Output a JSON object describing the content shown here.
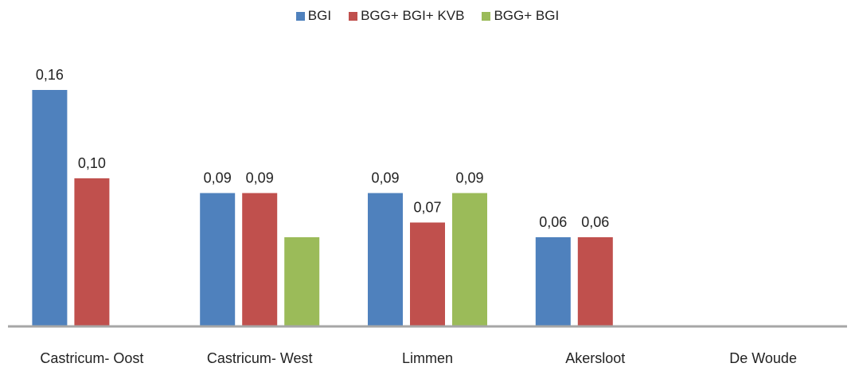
{
  "chart_data": {
    "type": "bar",
    "title": "",
    "xlabel": "",
    "ylabel": "",
    "categories": [
      "Castricum- Oost",
      "Castricum- West",
      "Limmen",
      "Akersloot",
      "De Woude"
    ],
    "series": [
      {
        "name": "BGI",
        "color": "#4F81BD",
        "values": [
          0.16,
          0.09,
          0.09,
          0.06,
          null
        ],
        "labels": [
          "0,16",
          "0,09",
          "0,09",
          "0,06",
          ""
        ]
      },
      {
        "name": "BGG+ BGI+ KVB",
        "color": "#C0504D",
        "values": [
          0.1,
          0.09,
          0.07,
          0.06,
          null
        ],
        "labels": [
          "0,10",
          "0,09",
          "0,07",
          "0,06",
          ""
        ]
      },
      {
        "name": "BGG+ BGI",
        "color": "#9BBB59",
        "values": [
          null,
          0.06,
          0.09,
          null,
          null
        ],
        "labels": [
          "",
          "",
          "0,09",
          "",
          ""
        ]
      }
    ],
    "ylim": [
      0,
      0.16
    ],
    "grid": false,
    "legend_position": "top-center",
    "axis_color": "#A6A6A6"
  }
}
